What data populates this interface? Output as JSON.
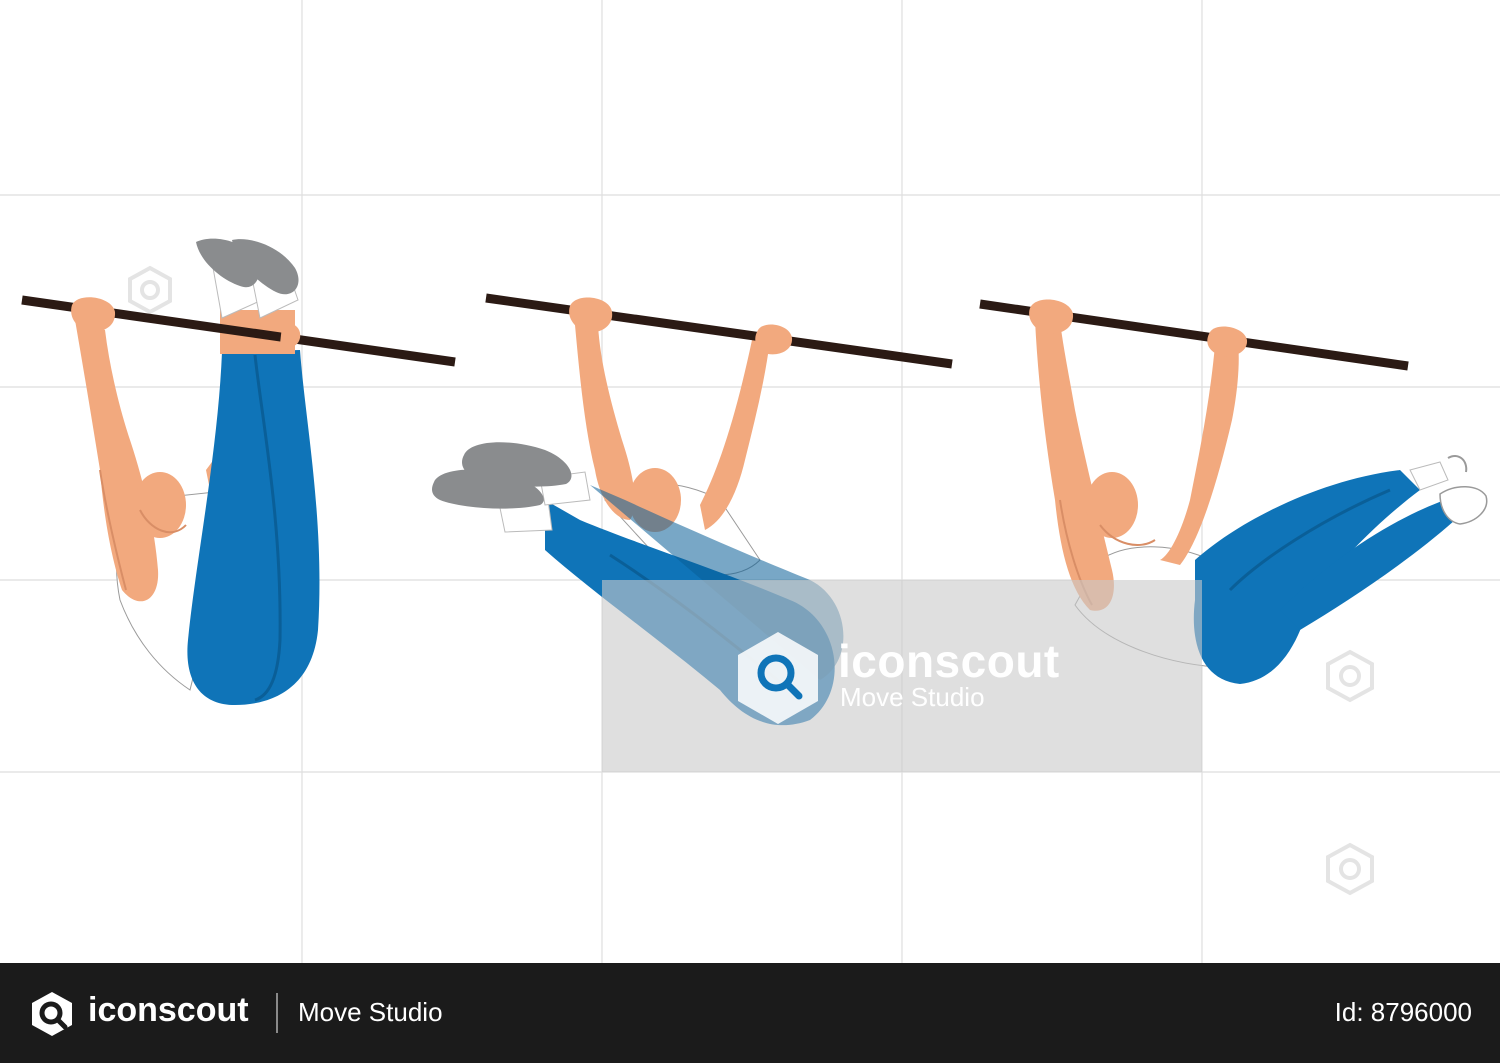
{
  "watermark": {
    "brand": "iconscout",
    "studio": "Move Studio"
  },
  "footer": {
    "brand": "iconscout",
    "studio": "Move Studio",
    "asset_id": "Id: 8796000"
  },
  "colors": {
    "skin": "#f2a97e",
    "skin_shadow": "#d98e66",
    "pants": "#0f74b8",
    "pants_dark": "#0a5f98",
    "shoe": "#8a8c8e",
    "sock": "#ffffff",
    "bar": "#2b1a14",
    "grid": "#d9d9d9",
    "watermark_box": "#c9c9c9",
    "footer_bg": "#1b1b1b"
  },
  "icons": [
    "iconscout-logo-icon",
    "watermark-search-icon"
  ]
}
